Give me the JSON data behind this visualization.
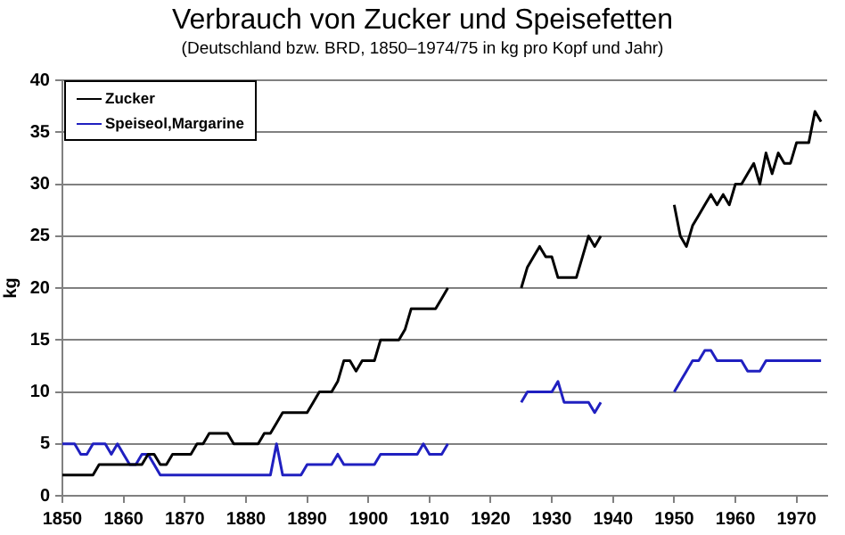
{
  "chart_data": {
    "type": "line",
    "title": "Verbrauch von Zucker und Speisefetten",
    "subtitle": "(Deutschland bzw. BRD, 1850–1974/75 in kg pro Kopf und Jahr)",
    "ylabel": "kg",
    "x": [
      1850,
      1851,
      1852,
      1853,
      1854,
      1855,
      1856,
      1857,
      1858,
      1859,
      1860,
      1861,
      1862,
      1863,
      1864,
      1865,
      1866,
      1867,
      1868,
      1869,
      1870,
      1871,
      1872,
      1873,
      1874,
      1875,
      1876,
      1877,
      1878,
      1879,
      1880,
      1881,
      1882,
      1883,
      1884,
      1885,
      1886,
      1887,
      1888,
      1889,
      1890,
      1891,
      1892,
      1893,
      1894,
      1895,
      1896,
      1897,
      1898,
      1899,
      1900,
      1901,
      1902,
      1903,
      1904,
      1905,
      1906,
      1907,
      1908,
      1909,
      1910,
      1911,
      1912,
      1913,
      1914,
      1915,
      1916,
      1917,
      1918,
      1919,
      1920,
      1921,
      1922,
      1923,
      1924,
      1925,
      1926,
      1927,
      1928,
      1929,
      1930,
      1931,
      1932,
      1933,
      1934,
      1935,
      1936,
      1937,
      1938,
      1939,
      1940,
      1941,
      1942,
      1943,
      1944,
      1945,
      1946,
      1947,
      1948,
      1949,
      1950,
      1951,
      1952,
      1953,
      1954,
      1955,
      1956,
      1957,
      1958,
      1959,
      1960,
      1961,
      1962,
      1963,
      1964,
      1965,
      1966,
      1967,
      1968,
      1969,
      1970,
      1971,
      1972,
      1973,
      1974
    ],
    "series": [
      {
        "name": "Zucker",
        "color": "#000000",
        "values": [
          2,
          2,
          2,
          2,
          2,
          2,
          3,
          3,
          3,
          3,
          3,
          3,
          3,
          3,
          4,
          4,
          3,
          3,
          4,
          4,
          4,
          4,
          5,
          5,
          6,
          6,
          6,
          6,
          5,
          5,
          5,
          5,
          5,
          6,
          6,
          7,
          8,
          8,
          8,
          8,
          8,
          9,
          10,
          10,
          10,
          11,
          13,
          13,
          12,
          13,
          13,
          13,
          15,
          15,
          15,
          15,
          16,
          18,
          18,
          18,
          18,
          18,
          19,
          20,
          null,
          null,
          null,
          null,
          null,
          null,
          null,
          null,
          null,
          null,
          null,
          20,
          22,
          23,
          24,
          23,
          23,
          21,
          21,
          21,
          21,
          23,
          25,
          24,
          25,
          null,
          null,
          null,
          null,
          null,
          null,
          null,
          null,
          null,
          null,
          null,
          28,
          25,
          24,
          26,
          27,
          28,
          29,
          28,
          29,
          28,
          30,
          30,
          31,
          32,
          30,
          33,
          31,
          33,
          32,
          32,
          34,
          34,
          34,
          37,
          36
        ]
      },
      {
        "name": "Speiseol,Margarine",
        "color": "#2020c0",
        "values": [
          5,
          5,
          5,
          4,
          4,
          5,
          5,
          5,
          4,
          5,
          4,
          3,
          3,
          4,
          4,
          3,
          2,
          2,
          2,
          2,
          2,
          2,
          2,
          2,
          2,
          2,
          2,
          2,
          2,
          2,
          2,
          2,
          2,
          2,
          2,
          5,
          2,
          2,
          2,
          2,
          3,
          3,
          3,
          3,
          3,
          4,
          3,
          3,
          3,
          3,
          3,
          3,
          4,
          4,
          4,
          4,
          4,
          4,
          4,
          5,
          4,
          4,
          4,
          5,
          null,
          null,
          null,
          null,
          null,
          null,
          null,
          null,
          null,
          null,
          null,
          9,
          10,
          10,
          10,
          10,
          10,
          11,
          9,
          9,
          9,
          9,
          9,
          8,
          9,
          null,
          null,
          null,
          null,
          null,
          null,
          null,
          null,
          null,
          null,
          null,
          10,
          11,
          12,
          13,
          13,
          14,
          14,
          13,
          13,
          13,
          13,
          13,
          12,
          12,
          12,
          13,
          13,
          13,
          13,
          13,
          13,
          13,
          13,
          13,
          13
        ]
      }
    ],
    "xlim": [
      1850,
      1975
    ],
    "xticks": [
      1850,
      1860,
      1870,
      1880,
      1890,
      1900,
      1910,
      1920,
      1930,
      1940,
      1950,
      1960,
      1970
    ],
    "ylim": [
      0,
      40
    ],
    "yticks": [
      0,
      5,
      10,
      15,
      20,
      25,
      30,
      35,
      40
    ],
    "grid": "y",
    "legend": "top left",
    "marker": "none",
    "line_style": "solid"
  }
}
